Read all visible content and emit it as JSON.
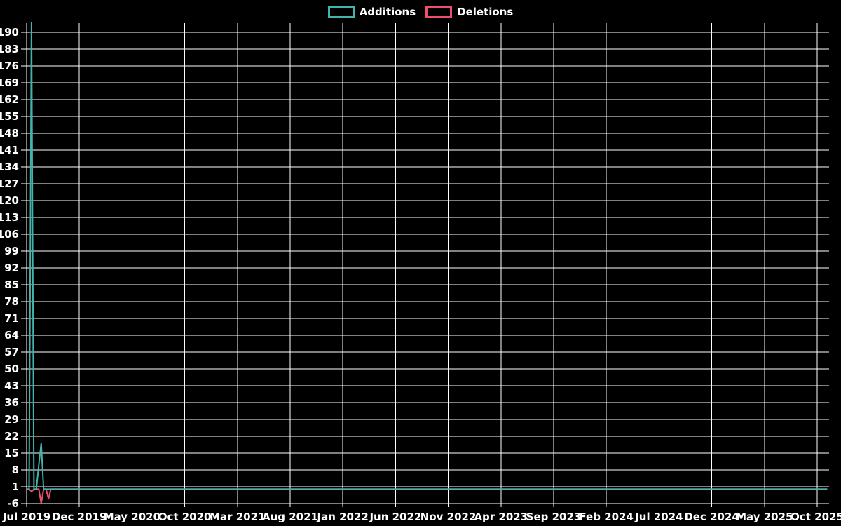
{
  "legend": {
    "items": [
      {
        "label": "Additions",
        "color": "#44b2ad"
      },
      {
        "label": "Deletions",
        "color": "#ef4f6e"
      }
    ]
  },
  "chart_data": {
    "type": "line",
    "title": "",
    "background_color": "#000000",
    "grid_color": "#ffffff",
    "text_color": "#ffffff",
    "grid": true,
    "legend_position": "top-center",
    "x_axis": {
      "unit": "week",
      "range_start": "Jul 2019",
      "range_end": "Oct 2025",
      "tick_labels": [
        "Jul 2019",
        "Dec 2019",
        "May 2020",
        "Oct 2020",
        "Mar 2021",
        "Aug 2021",
        "Jan 2022",
        "Jun 2022",
        "Nov 2022",
        "Apr 2023",
        "Sep 2023",
        "Feb 2024",
        "Jul 2024",
        "Dec 2024",
        "May 2025",
        "Oct 2025"
      ]
    },
    "y_axis": {
      "min": -6,
      "max_tick": 190,
      "tick_step": 7,
      "tick_labels": [
        190,
        183,
        176,
        169,
        162,
        155,
        148,
        141,
        134,
        127,
        120,
        113,
        106,
        99,
        92,
        85,
        78,
        71,
        64,
        57,
        50,
        43,
        36,
        29,
        22,
        15,
        8,
        1,
        -6
      ]
    },
    "weeks_total": 331,
    "series": [
      {
        "name": "Additions",
        "color": "#44b2ad",
        "baseline": 0,
        "max_value": 194,
        "nonzero_points": {
          "2": 194,
          "5": 10,
          "6": 19
        }
      },
      {
        "name": "Deletions",
        "color": "#ef4f6e",
        "baseline": 0,
        "min_value": -6,
        "nonzero_points": {
          "2": -1,
          "6": -6,
          "9": -4
        }
      }
    ]
  }
}
